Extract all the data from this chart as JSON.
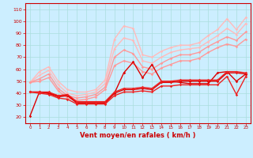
{
  "title": "",
  "xlabel": "Vent moyen/en rafales ( km/h )",
  "xlim": [
    -0.5,
    23.5
  ],
  "ylim": [
    15,
    115
  ],
  "yticks": [
    20,
    30,
    40,
    50,
    60,
    70,
    80,
    90,
    100,
    110
  ],
  "xticks": [
    0,
    1,
    2,
    3,
    4,
    5,
    6,
    7,
    8,
    9,
    10,
    11,
    12,
    13,
    14,
    15,
    16,
    17,
    18,
    19,
    20,
    21,
    22,
    23
  ],
  "background_color": "#cceeff",
  "grid_color": "#aadddd",
  "series": [
    {
      "name": "line_lightest_1",
      "x": [
        0,
        1,
        2,
        3,
        4,
        5,
        6,
        7,
        8,
        9,
        10,
        11,
        12,
        13,
        14,
        15,
        16,
        17,
        18,
        19,
        20,
        21,
        22,
        23
      ],
      "y": [
        49,
        58,
        62,
        50,
        43,
        41,
        41,
        43,
        51,
        85,
        96,
        94,
        72,
        70,
        75,
        78,
        80,
        80,
        82,
        88,
        93,
        102,
        93,
        103
      ],
      "color": "#ffbbbb",
      "marker": "D",
      "markersize": 1.8,
      "linewidth": 1.0
    },
    {
      "name": "line_lightest_2",
      "x": [
        0,
        1,
        2,
        3,
        4,
        5,
        6,
        7,
        8,
        9,
        10,
        11,
        12,
        13,
        14,
        15,
        16,
        17,
        18,
        19,
        20,
        21,
        22,
        23
      ],
      "y": [
        49,
        55,
        59,
        47,
        40,
        38,
        39,
        41,
        48,
        77,
        86,
        84,
        67,
        65,
        70,
        74,
        76,
        77,
        78,
        83,
        88,
        94,
        89,
        98
      ],
      "color": "#ffbbbb",
      "marker": "D",
      "markersize": 1.8,
      "linewidth": 1.0
    },
    {
      "name": "line_medium_1",
      "x": [
        0,
        1,
        2,
        3,
        4,
        5,
        6,
        7,
        8,
        9,
        10,
        11,
        12,
        13,
        14,
        15,
        16,
        17,
        18,
        19,
        20,
        21,
        22,
        23
      ],
      "y": [
        49,
        52,
        56,
        44,
        38,
        36,
        37,
        39,
        45,
        70,
        76,
        73,
        62,
        60,
        65,
        69,
        72,
        72,
        74,
        79,
        83,
        87,
        84,
        91
      ],
      "color": "#ff9999",
      "marker": "D",
      "markersize": 1.8,
      "linewidth": 1.0
    },
    {
      "name": "line_medium_2",
      "x": [
        0,
        1,
        2,
        3,
        4,
        5,
        6,
        7,
        8,
        9,
        10,
        11,
        12,
        13,
        14,
        15,
        16,
        17,
        18,
        19,
        20,
        21,
        22,
        23
      ],
      "y": [
        49,
        50,
        53,
        42,
        36,
        34,
        35,
        37,
        43,
        63,
        67,
        65,
        58,
        56,
        61,
        64,
        67,
        67,
        69,
        74,
        78,
        81,
        79,
        85
      ],
      "color": "#ff9999",
      "marker": "D",
      "markersize": 1.8,
      "linewidth": 1.0
    },
    {
      "name": "line_dark_zigzag",
      "x": [
        0,
        1,
        2,
        3,
        4,
        5,
        6,
        7,
        8,
        9,
        10,
        11,
        12,
        13,
        14,
        15,
        16,
        17,
        18,
        19,
        20,
        21,
        22,
        23
      ],
      "y": [
        21,
        41,
        40,
        37,
        38,
        32,
        32,
        32,
        32,
        40,
        57,
        66,
        53,
        64,
        50,
        50,
        49,
        48,
        48,
        48,
        57,
        58,
        50,
        56
      ],
      "color": "#dd0000",
      "marker": "D",
      "markersize": 1.8,
      "linewidth": 1.0
    },
    {
      "name": "line_dark_upper_flat",
      "x": [
        0,
        1,
        2,
        3,
        4,
        5,
        6,
        7,
        8,
        9,
        10,
        11,
        12,
        13,
        14,
        15,
        16,
        17,
        18,
        19,
        20,
        21,
        22,
        23
      ],
      "y": [
        41,
        41,
        40,
        38,
        38,
        32,
        32,
        32,
        32,
        40,
        43,
        43,
        44,
        43,
        49,
        49,
        50,
        50,
        50,
        50,
        50,
        57,
        57,
        56
      ],
      "color": "#dd0000",
      "marker": "D",
      "markersize": 1.8,
      "linewidth": 1.0
    },
    {
      "name": "line_dark_lower_flat",
      "x": [
        0,
        1,
        2,
        3,
        4,
        5,
        6,
        7,
        8,
        9,
        10,
        11,
        12,
        13,
        14,
        15,
        16,
        17,
        18,
        19,
        20,
        21,
        22,
        23
      ],
      "y": [
        41,
        40,
        39,
        36,
        35,
        31,
        31,
        31,
        31,
        38,
        41,
        41,
        42,
        41,
        46,
        46,
        47,
        47,
        47,
        47,
        47,
        54,
        39,
        54
      ],
      "color": "#ee2222",
      "marker": "D",
      "markersize": 1.8,
      "linewidth": 1.0
    },
    {
      "name": "line_dark_mid",
      "x": [
        0,
        1,
        2,
        3,
        4,
        5,
        6,
        7,
        8,
        9,
        10,
        11,
        12,
        13,
        14,
        15,
        16,
        17,
        18,
        19,
        20,
        21,
        22,
        23
      ],
      "y": [
        41,
        41,
        41,
        38,
        39,
        33,
        33,
        33,
        33,
        41,
        44,
        44,
        45,
        44,
        50,
        50,
        51,
        51,
        51,
        51,
        51,
        58,
        58,
        57
      ],
      "color": "#ee2222",
      "marker": "D",
      "markersize": 1.8,
      "linewidth": 1.0
    }
  ]
}
